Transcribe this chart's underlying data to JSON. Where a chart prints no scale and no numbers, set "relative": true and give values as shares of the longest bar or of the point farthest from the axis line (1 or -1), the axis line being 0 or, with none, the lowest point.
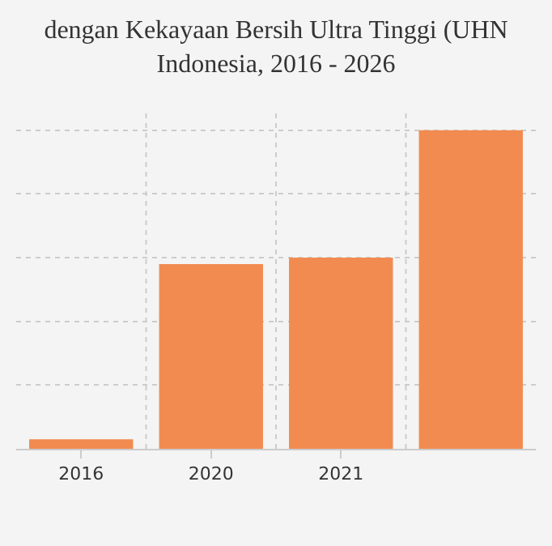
{
  "chart_data": {
    "type": "bar",
    "title": "dengan Kekayaan Bersih Ultra Tinggi (UHN\nIndonesia, 2016 - 2026",
    "categories": [
      "2016",
      "2020",
      "2021",
      null
    ],
    "values": [
      0.03,
      0.58,
      0.6,
      1
    ],
    "color": "#f28b50",
    "relative": true,
    "grid": true
  }
}
